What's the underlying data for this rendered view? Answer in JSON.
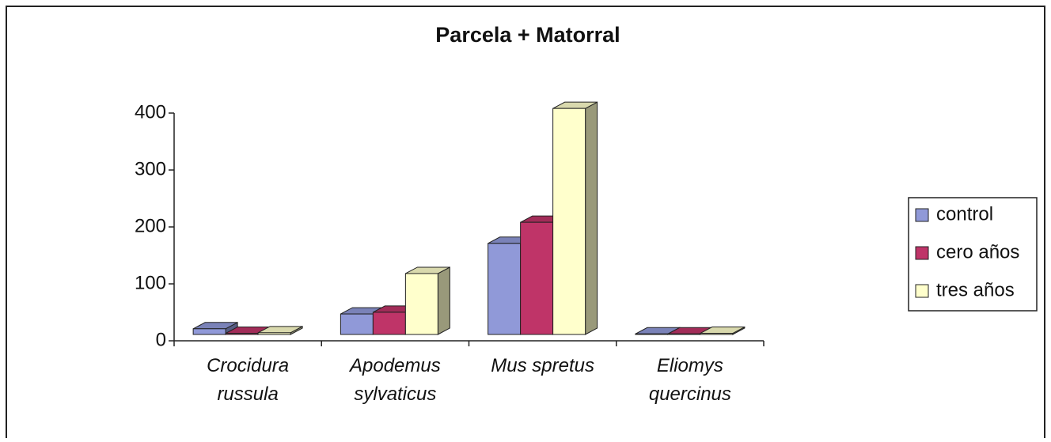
{
  "chart_data": {
    "type": "bar3d",
    "title": "Parcela + Matorral",
    "categories": [
      "Crocidura russula",
      "Apodemus sylvaticus",
      "Mus spretus",
      "Eliomys quercinus"
    ],
    "series": [
      {
        "name": "control",
        "color": "#9099d8",
        "values": [
          10,
          36,
          160,
          1
        ]
      },
      {
        "name": "cero años",
        "color": "#bf3468",
        "values": [
          2,
          39,
          197,
          1
        ]
      },
      {
        "name": "tres años",
        "color": "#ffffcc",
        "values": [
          3,
          107,
          397,
          2
        ]
      }
    ],
    "ylim": [
      0,
      400
    ],
    "yticks": [
      0,
      100,
      200,
      300,
      400
    ],
    "legend": "right"
  }
}
